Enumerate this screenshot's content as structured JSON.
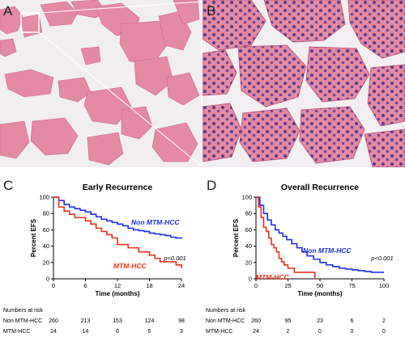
{
  "panels": {
    "A": "A",
    "B": "B",
    "C": "C",
    "D": "D"
  },
  "chart_data": [
    {
      "type": "line",
      "title": "Early Recurrence",
      "xlabel": "Time (months)",
      "ylabel": "Percent EFS",
      "xlim": [
        0,
        24
      ],
      "ylim": [
        0,
        100
      ],
      "xticks": [
        0,
        6,
        12,
        18,
        24
      ],
      "yticks": [
        0,
        20,
        40,
        60,
        80,
        100
      ],
      "pvalue": "p<0.001",
      "series": [
        {
          "name": "Non MTM-HCC",
          "color": "#1f2fe0",
          "x": [
            0,
            1,
            2,
            3,
            4,
            5,
            6,
            7,
            8,
            9,
            10,
            11,
            12,
            13,
            14,
            15,
            16,
            17,
            18,
            19,
            20,
            21,
            22,
            23,
            24
          ],
          "y": [
            100,
            96,
            91,
            88,
            86,
            84,
            82,
            79,
            76,
            73,
            71,
            69,
            67,
            65,
            62,
            60,
            59,
            58,
            56,
            55,
            54,
            53,
            51,
            50,
            49
          ]
        },
        {
          "name": "MTM-HCC",
          "color": "#e8311a",
          "x": [
            0,
            1,
            2,
            3,
            4,
            5,
            6,
            7,
            8,
            9,
            10,
            11,
            12,
            13,
            14,
            15,
            16,
            17,
            18,
            19,
            20,
            21,
            22,
            23,
            24
          ],
          "y": [
            100,
            88,
            83,
            79,
            75,
            75,
            71,
            67,
            62,
            58,
            54,
            50,
            42,
            42,
            38,
            38,
            33,
            33,
            29,
            25,
            21,
            21,
            21,
            17,
            13
          ]
        }
      ]
    },
    {
      "type": "line",
      "title": "Overall Recurrence",
      "xlabel": "Time (months)",
      "ylabel": "Percent EFS",
      "xlim": [
        0,
        100
      ],
      "ylim": [
        0,
        100
      ],
      "xticks": [
        0,
        25,
        50,
        75,
        100
      ],
      "yticks": [
        0,
        20,
        40,
        60,
        80,
        100
      ],
      "pvalue": "p<0.001",
      "series": [
        {
          "name": "Non MTM-HCC",
          "color": "#1f2fe0",
          "x": [
            0,
            3,
            6,
            9,
            12,
            15,
            18,
            21,
            24,
            28,
            32,
            36,
            40,
            45,
            50,
            55,
            60,
            65,
            70,
            75,
            80,
            85,
            90,
            95,
            100
          ],
          "y": [
            100,
            90,
            80,
            72,
            66,
            60,
            56,
            52,
            48,
            43,
            38,
            33,
            28,
            24,
            20,
            17,
            15,
            13,
            12,
            11,
            10,
            9,
            8,
            8,
            8
          ]
        },
        {
          "name": "MTM-HCC",
          "color": "#e8311a",
          "x": [
            0,
            2,
            4,
            6,
            8,
            10,
            12,
            14,
            16,
            18,
            20,
            22,
            25,
            30,
            35,
            40,
            45,
            46
          ],
          "y": [
            100,
            88,
            75,
            63,
            58,
            50,
            42,
            38,
            33,
            25,
            21,
            17,
            13,
            8,
            8,
            8,
            8,
            0
          ]
        }
      ]
    }
  ],
  "risk_tables": [
    {
      "header": "Numbers at risk",
      "rows": [
        {
          "label": "Non MTM-HCC",
          "values": [
            "260",
            "213",
            "153",
            "124",
            "98"
          ]
        },
        {
          "label": "MTM-HCC",
          "values": [
            "24",
            "14",
            "6",
            "5",
            "3"
          ]
        }
      ]
    },
    {
      "header": "Numbers at risk",
      "rows": [
        {
          "label": "Non MTM-HCC",
          "values": [
            "260",
            "95",
            "23",
            "6",
            "2"
          ]
        },
        {
          "label": "MTM-HCC",
          "values": [
            "24",
            "2",
            "0",
            "0",
            "0"
          ]
        }
      ]
    }
  ],
  "colors": {
    "blue": "#1f2fe0",
    "red": "#e8311a",
    "tissue": "#e58aa4",
    "background": "#ffffff"
  }
}
